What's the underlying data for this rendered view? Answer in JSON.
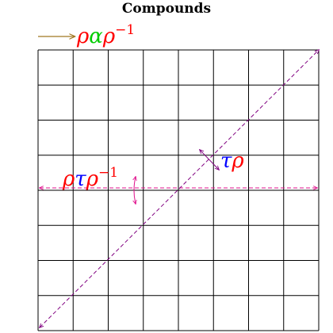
{
  "title": "Compounds",
  "grid": {
    "columns": 8,
    "rows": 8
  },
  "legend_label": {
    "parts": [
      "ρ",
      "α",
      "ρ"
    ],
    "superscript": "−1",
    "colors": [
      "#ff0000",
      "#00cc00",
      "#ff0000"
    ]
  },
  "label_rho_tau_rho_inv": {
    "parts": [
      "ρ",
      "τ",
      "ρ"
    ],
    "superscript": "−1",
    "colors": [
      "#ff0000",
      "#0000ff",
      "#ff0000"
    ]
  },
  "label_tau_rho": {
    "parts": [
      "τ",
      "ρ"
    ],
    "colors": [
      "#0000ff",
      "#ff0000"
    ]
  },
  "colors": {
    "grid": "#000000",
    "axis_purple": "#800080",
    "axis_magenta": "#e0108c",
    "legend_arrow": "#a07820",
    "red": "#ff0000",
    "green": "#00cc00",
    "blue": "#0000ff"
  }
}
